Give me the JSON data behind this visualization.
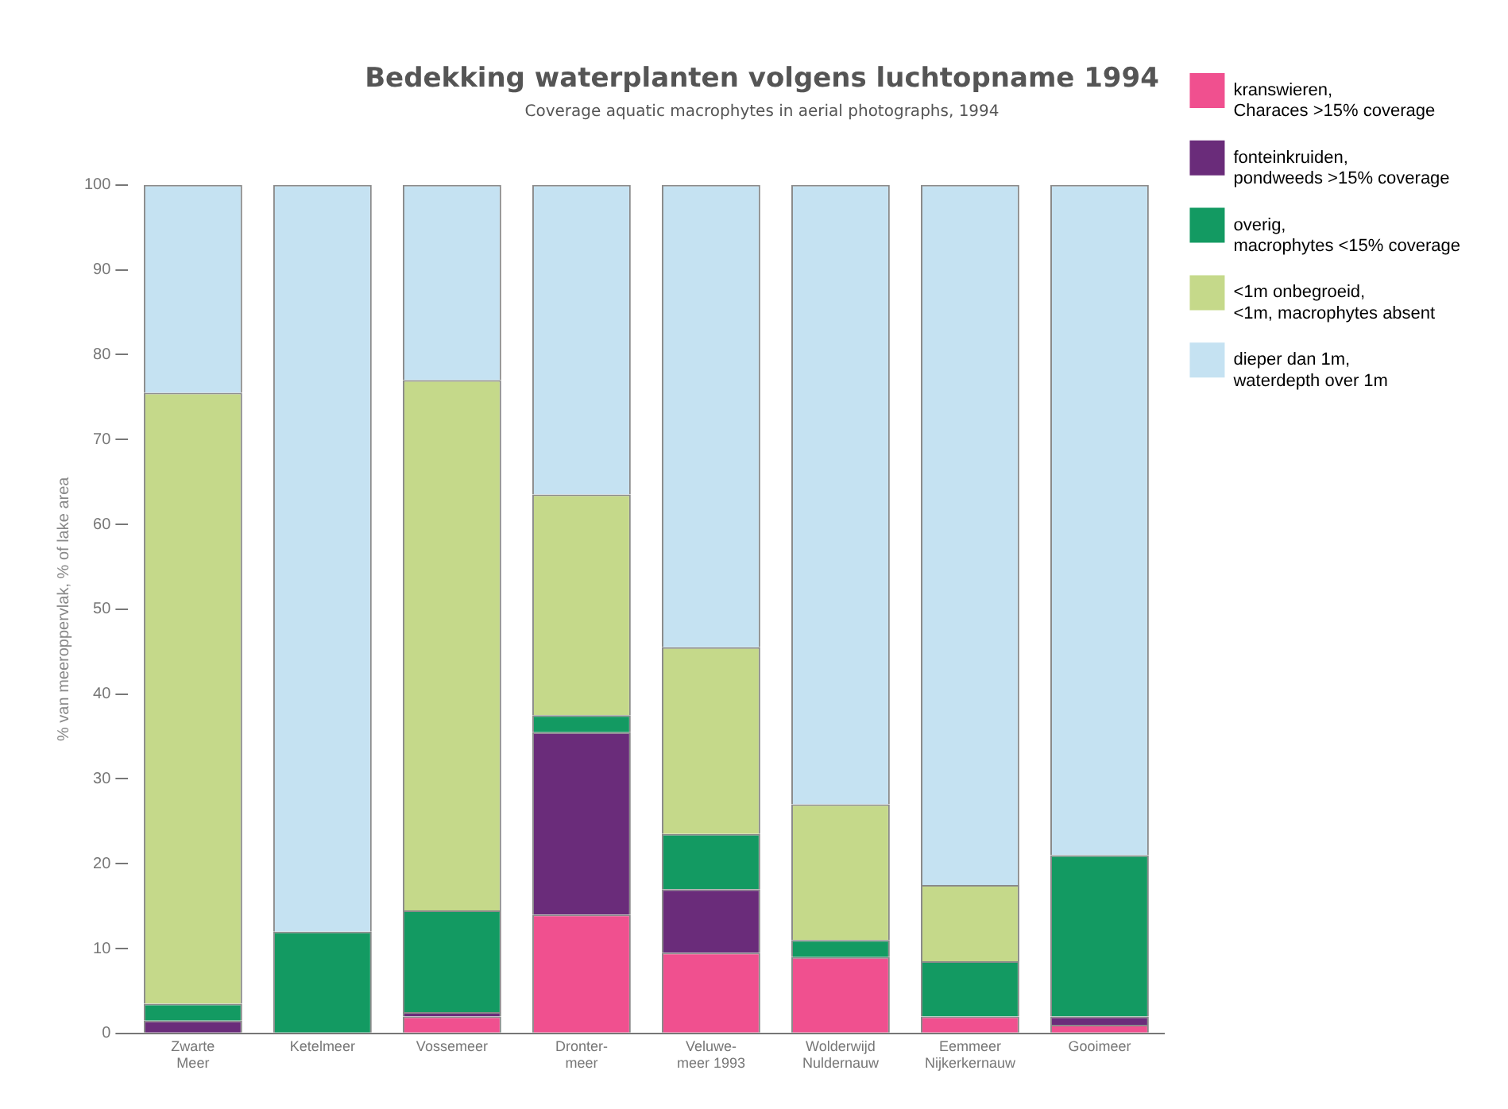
{
  "chart_data": {
    "type": "bar",
    "stacked": true,
    "title": "Bedekking waterplanten volgens luchtopname 1994",
    "subtitle": "Coverage aquatic macrophytes in aerial photographs, 1994",
    "ylabel": "% van meeroppervlak, % of lake area",
    "categories": [
      "Zwarte\nMeer",
      "Ketelmeer",
      "Vossemeer",
      "Dronter-\nmeer",
      "Veluwe-\nmeer 1993",
      "Wolderwijd\nNuldernauw",
      "Eemmeer\nNijkerkernauw",
      "Gooimeer"
    ],
    "series": [
      {
        "name": "kranswieren,\nCharaces >15% coverage",
        "color": "#f0508f",
        "values": [
          0,
          0,
          2,
          14,
          9.5,
          9,
          2,
          1
        ]
      },
      {
        "name": "fonteinkruiden,\npondweeds >15% coverage",
        "color": "#6a2c7a",
        "values": [
          1.5,
          0,
          0.5,
          21.5,
          7.5,
          0,
          0,
          1
        ]
      },
      {
        "name": "overig,\nmacrophytes <15% coverage",
        "color": "#139a62",
        "values": [
          2,
          12,
          12,
          2,
          6.5,
          2,
          6.5,
          19
        ]
      },
      {
        "name": "<1m onbegroeid,\n<1m, macrophytes absent",
        "color": "#c5d98a",
        "values": [
          72,
          0,
          62.5,
          26,
          22,
          16,
          9,
          0
        ]
      },
      {
        "name": "dieper dan 1m,\nwaterdepth over 1m",
        "color": "#c5e2f2",
        "values": [
          24.5,
          88,
          23,
          36.5,
          54.5,
          73,
          82.5,
          79
        ]
      }
    ],
    "ylim": [
      0,
      100
    ],
    "yticks": [
      0,
      10,
      20,
      30,
      40,
      50,
      60,
      70,
      80,
      90,
      100
    ],
    "grid": false,
    "legend": "right"
  }
}
